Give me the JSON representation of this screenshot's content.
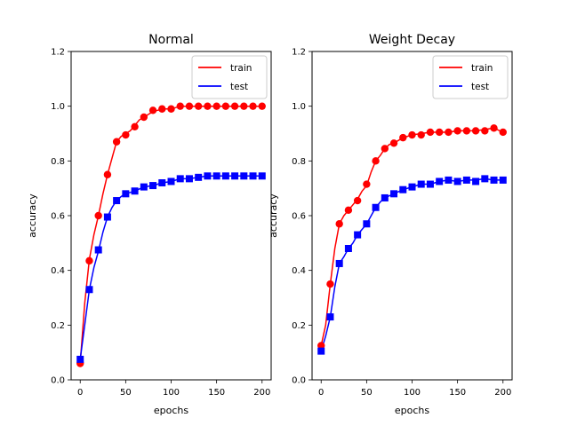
{
  "chart_data": [
    {
      "type": "line",
      "title": "Normal",
      "xlabel": "epochs",
      "ylabel": "accuracy",
      "xlim": [
        -10,
        210
      ],
      "ylim": [
        0.0,
        1.2
      ],
      "xticks": [
        0,
        50,
        100,
        150,
        200
      ],
      "xtick_labels": [
        "0",
        "50",
        "100",
        "150",
        "200"
      ],
      "yticks": [
        0.0,
        0.2,
        0.4,
        0.6,
        0.8,
        1.0,
        1.2
      ],
      "ytick_labels": [
        "0.0",
        "0.2",
        "0.4",
        "0.6",
        "0.8",
        "1.0",
        "1.2"
      ],
      "grid": false,
      "legend_position": "top-right",
      "series": [
        {
          "name": "train",
          "color": "#ff0000",
          "marker": "circle",
          "line": {
            "x": [
              0,
              5,
              10,
              15,
              20,
              25,
              30,
              35,
              40,
              45,
              50,
              55,
              60,
              65,
              70,
              75,
              80,
              90,
              100,
              110,
              120,
              130,
              140,
              150,
              160,
              170,
              180,
              190,
              200
            ],
            "y": [
              0.06,
              0.28,
              0.44,
              0.53,
              0.6,
              0.68,
              0.75,
              0.81,
              0.87,
              0.89,
              0.9,
              0.91,
              0.93,
              0.95,
              0.96,
              0.97,
              0.98,
              0.99,
              0.99,
              1.0,
              1.0,
              1.0,
              1.0,
              1.0,
              1.0,
              1.0,
              1.0,
              1.0,
              1.0
            ]
          },
          "markers": {
            "x": [
              0,
              10,
              20,
              30,
              40,
              50,
              60,
              70,
              80,
              90,
              100,
              110,
              120,
              130,
              140,
              150,
              160,
              170,
              180,
              190,
              200
            ],
            "y": [
              0.06,
              0.435,
              0.6,
              0.75,
              0.87,
              0.895,
              0.925,
              0.96,
              0.985,
              0.99,
              0.99,
              1.0,
              1.0,
              1.0,
              1.0,
              1.0,
              1.0,
              1.0,
              1.0,
              1.0,
              1.0
            ]
          }
        },
        {
          "name": "test",
          "color": "#0000ff",
          "marker": "square",
          "line": {
            "x": [
              0,
              5,
              10,
              15,
              20,
              25,
              30,
              35,
              40,
              45,
              50,
              60,
              70,
              80,
              90,
              100,
              110,
              120,
              130,
              140,
              150,
              160,
              170,
              180,
              190,
              200
            ],
            "y": [
              0.075,
              0.2,
              0.33,
              0.41,
              0.47,
              0.54,
              0.595,
              0.63,
              0.655,
              0.67,
              0.68,
              0.69,
              0.705,
              0.71,
              0.72,
              0.725,
              0.735,
              0.735,
              0.74,
              0.745,
              0.745,
              0.745,
              0.745,
              0.745,
              0.745,
              0.745
            ]
          },
          "markers": {
            "x": [
              0,
              10,
              20,
              30,
              40,
              50,
              60,
              70,
              80,
              90,
              100,
              110,
              120,
              130,
              140,
              150,
              160,
              170,
              180,
              190,
              200
            ],
            "y": [
              0.075,
              0.33,
              0.475,
              0.595,
              0.655,
              0.68,
              0.69,
              0.705,
              0.71,
              0.72,
              0.725,
              0.735,
              0.735,
              0.74,
              0.745,
              0.745,
              0.745,
              0.745,
              0.745,
              0.745,
              0.745
            ]
          }
        }
      ]
    },
    {
      "type": "line",
      "title": "Weight Decay",
      "xlabel": "epochs",
      "ylabel": "accuracy",
      "xlim": [
        -10,
        210
      ],
      "ylim": [
        0.0,
        1.2
      ],
      "xticks": [
        0,
        50,
        100,
        150,
        200
      ],
      "xtick_labels": [
        "0",
        "50",
        "100",
        "150",
        "200"
      ],
      "yticks": [
        0.0,
        0.2,
        0.4,
        0.6,
        0.8,
        1.0,
        1.2
      ],
      "ytick_labels": [
        "0.0",
        "0.2",
        "0.4",
        "0.6",
        "0.8",
        "1.0",
        "1.2"
      ],
      "grid": false,
      "legend_position": "top-right",
      "series": [
        {
          "name": "train",
          "color": "#ff0000",
          "marker": "circle",
          "line": {
            "x": [
              0,
              5,
              10,
              15,
              20,
              25,
              30,
              35,
              40,
              45,
              50,
              55,
              60,
              65,
              70,
              75,
              80,
              85,
              90,
              95,
              100,
              110,
              120,
              130,
              140,
              150,
              160,
              170,
              180,
              190,
              200
            ],
            "y": [
              0.125,
              0.2,
              0.35,
              0.48,
              0.57,
              0.6,
              0.62,
              0.64,
              0.66,
              0.69,
              0.71,
              0.76,
              0.8,
              0.82,
              0.845,
              0.86,
              0.865,
              0.875,
              0.885,
              0.89,
              0.895,
              0.9,
              0.905,
              0.905,
              0.905,
              0.91,
              0.91,
              0.91,
              0.915,
              0.92,
              0.905
            ]
          },
          "markers": {
            "x": [
              0,
              10,
              20,
              30,
              40,
              50,
              60,
              70,
              80,
              90,
              100,
              110,
              120,
              130,
              140,
              150,
              160,
              170,
              180,
              190,
              200
            ],
            "y": [
              0.125,
              0.35,
              0.57,
              0.62,
              0.655,
              0.715,
              0.8,
              0.845,
              0.865,
              0.885,
              0.895,
              0.895,
              0.905,
              0.905,
              0.905,
              0.91,
              0.91,
              0.91,
              0.91,
              0.92,
              0.905
            ]
          }
        },
        {
          "name": "test",
          "color": "#0000ff",
          "marker": "square",
          "line": {
            "x": [
              0,
              5,
              10,
              15,
              20,
              25,
              30,
              35,
              40,
              45,
              50,
              55,
              60,
              65,
              70,
              80,
              90,
              100,
              110,
              120,
              130,
              140,
              150,
              160,
              170,
              180,
              190,
              200
            ],
            "y": [
              0.105,
              0.16,
              0.23,
              0.34,
              0.425,
              0.45,
              0.48,
              0.5,
              0.53,
              0.55,
              0.57,
              0.6,
              0.63,
              0.65,
              0.665,
              0.68,
              0.695,
              0.705,
              0.715,
              0.715,
              0.725,
              0.73,
              0.725,
              0.73,
              0.73,
              0.735,
              0.73,
              0.73
            ]
          },
          "markers": {
            "x": [
              0,
              10,
              20,
              30,
              40,
              50,
              60,
              70,
              80,
              90,
              100,
              110,
              120,
              130,
              140,
              150,
              160,
              170,
              180,
              190,
              200
            ],
            "y": [
              0.105,
              0.23,
              0.425,
              0.48,
              0.53,
              0.57,
              0.63,
              0.665,
              0.68,
              0.695,
              0.705,
              0.715,
              0.715,
              0.725,
              0.73,
              0.725,
              0.73,
              0.725,
              0.735,
              0.73,
              0.73
            ]
          }
        }
      ]
    }
  ]
}
